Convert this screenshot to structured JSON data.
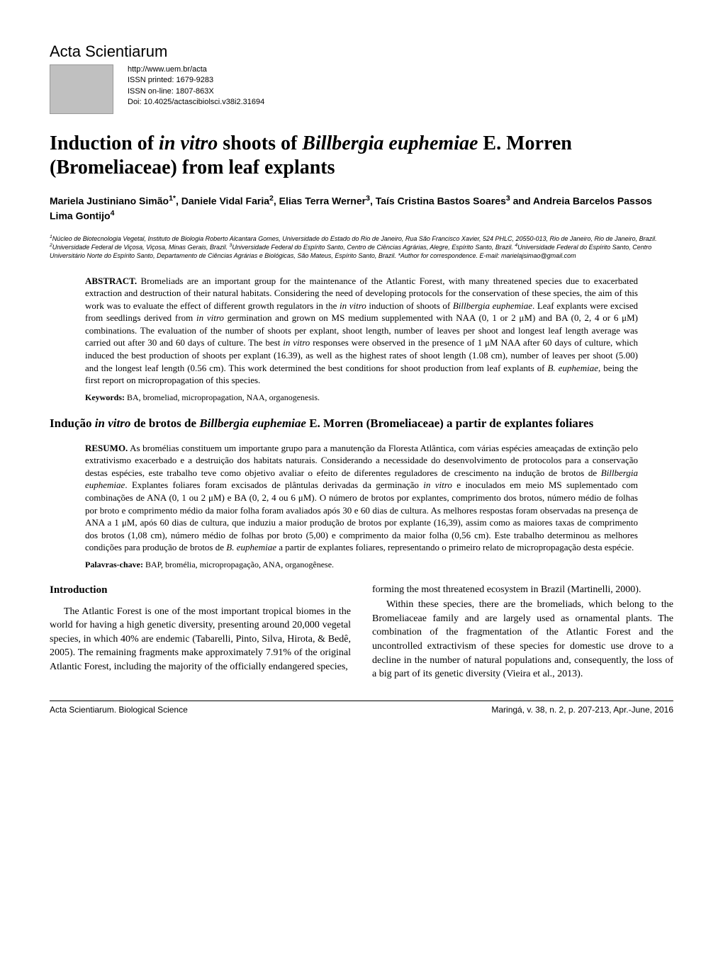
{
  "journal": {
    "name": "Acta Scientiarum",
    "url": "http://www.uem.br/acta",
    "issn_print": "ISSN printed: 1679-9283",
    "issn_online": "ISSN on-line: 1807-863X",
    "doi": "Doi: 10.4025/actascibiolsci.v38i2.31694"
  },
  "article": {
    "title_html": "Induction of <i>in vitro</i> shoots of <i>Billbergia euphemiae</i> E. Morren (Bromeliaceae) from leaf explants",
    "authors_html": "Mariela Justiniano Simão<sup>1*</sup>, Daniele Vidal Faria<sup>2</sup>, Elias Terra Werner<sup>3</sup>, Taís Cristina Bastos Soares<sup>3</sup> and Andreia Barcelos Passos Lima Gontijo<sup>4</sup>",
    "affiliations_html": "<sup>1</sup>Núcleo de Biotecnologia Vegetal, Instituto de Biologia Roberto Alcantara Gomes, Universidade do Estado do Rio de Janeiro, Rua São Francisco Xavier, 524 PHLC, 20550-013, Rio de Janeiro, Rio de Janeiro, Brazil. <sup>2</sup>Universidade Federal de Viçosa, Viçosa, Minas Gerais, Brazil. <sup>3</sup>Universidade Federal do Espírito Santo, Centro de Ciências Agrárias, Alegre, Espírito Santo, Brazil. <sup>4</sup>Universidade Federal do Espírito Santo, Centro Universitário Norte do Espírito Santo, Departamento de Ciências Agrárias e Biológicas, São Mateus, Espírito Santo, Brazil. *Author for correspondence. E-mail: marielajsimao@gmail.com",
    "abstract_label": "ABSTRACT.",
    "abstract_html": "Bromeliads are an important group for the maintenance of the Atlantic Forest, with many threatened species due to exacerbated extraction and destruction of their natural habitats. Considering the need of developing protocols for the conservation of these species, the aim of this work was to evaluate the effect of different growth regulators in the <i>in vitro</i> induction of shoots of <i>Billbergia euphemiae</i>. Leaf explants were excised from seedlings derived from <i>in vitro</i> germination and grown on MS medium supplemented with NAA (0, 1 or 2 μM) and BA (0, 2, 4 or 6 μM) combinations. The evaluation of the number of shoots per explant, shoot length, number of leaves per shoot and longest leaf length average was carried out after 30 and 60 days of culture. The best <i>in vitro</i> responses were observed in the presence of 1 μM NAA after 60 days of culture, which induced the best production of shoots per explant (16.39), as well as the highest rates of shoot length (1.08 cm), number of leaves per shoot (5.00) and the longest leaf length (0.56 cm). This work determined the best conditions for shoot production from leaf explants of <i>B. euphemiae</i>, being the first report on micropropagation of this species.",
    "keywords_label": "Keywords:",
    "keywords": "BA, bromeliad, micropropagation, NAA, organogenesis.",
    "pt_title_html": "Indução <i>in vitro</i> de brotos de <i>Billbergia euphemiae</i> E. Morren (Bromeliaceae) a partir de explantes foliares",
    "resumo_label": "RESUMO.",
    "resumo_html": "As bromélias constituem um importante grupo para a manutenção da Floresta Atlântica, com várias espécies ameaçadas de extinção pelo extrativismo exacerbado e a destruição dos habitats naturais. Considerando a necessidade do desenvolvimento de protocolos para a conservação destas espécies, este trabalho teve como objetivo avaliar o efeito de diferentes reguladores de crescimento na indução de brotos de <i>Billbergia euphemiae</i>. Explantes foliares foram excisados de plântulas derivadas da germinação <i>in vitro</i> e inoculados em meio MS suplementado com combinações de ANA (0, 1 ou 2 μM) e BA (0, 2, 4 ou 6 μM). O número de brotos por explantes, comprimento dos brotos, número médio de folhas por broto e comprimento médio da maior folha foram avaliados após 30 e 60 dias de cultura. As melhores respostas foram observadas na presença de ANA a 1 μM, após 60 dias de cultura, que induziu a maior produção de brotos por explante (16,39), assim como as maiores taxas de comprimento dos brotos (1,08 cm), número médio de folhas por broto (5,00) e comprimento da maior folha (0,56 cm). Este trabalho determinou as melhores condições para produção de brotos de <i>B. euphemiae</i> a partir de explantes foliares, representando o primeiro relato de micropropagação desta espécie.",
    "palavras_label": "Palavras-chave:",
    "palavras": "BAP, bromélia, micropropagação, ANA, organogênese."
  },
  "intro": {
    "heading": "Introduction",
    "col1_p1": "The Atlantic Forest is one of the most important tropical biomes in the world for having a high genetic diversity, presenting around 20,000 vegetal species, in which 40% are endemic (Tabarelli, Pinto, Silva, Hirota, & Bedê, 2005). The remaining fragments make approximately 7.91% of the original Atlantic Forest, including the majority of the officially endangered species,",
    "col2_p1": "forming the most threatened ecosystem in Brazil (Martinelli, 2000).",
    "col2_p2": "Within these species, there are the bromeliads, which belong to the Bromeliaceae family and are largely used as ornamental plants. The combination of the fragmentation of the Atlantic Forest and the uncontrolled extractivism of these species for domestic use drove to a decline in the number of natural populations and, consequently, the loss of a big part of its genetic diversity (Vieira et al., 2013)."
  },
  "footer": {
    "left": "Acta Scientiarum. Biological Science",
    "right": "Maringá, v. 38, n. 2, p. 207-213, Apr.-June, 2016"
  }
}
